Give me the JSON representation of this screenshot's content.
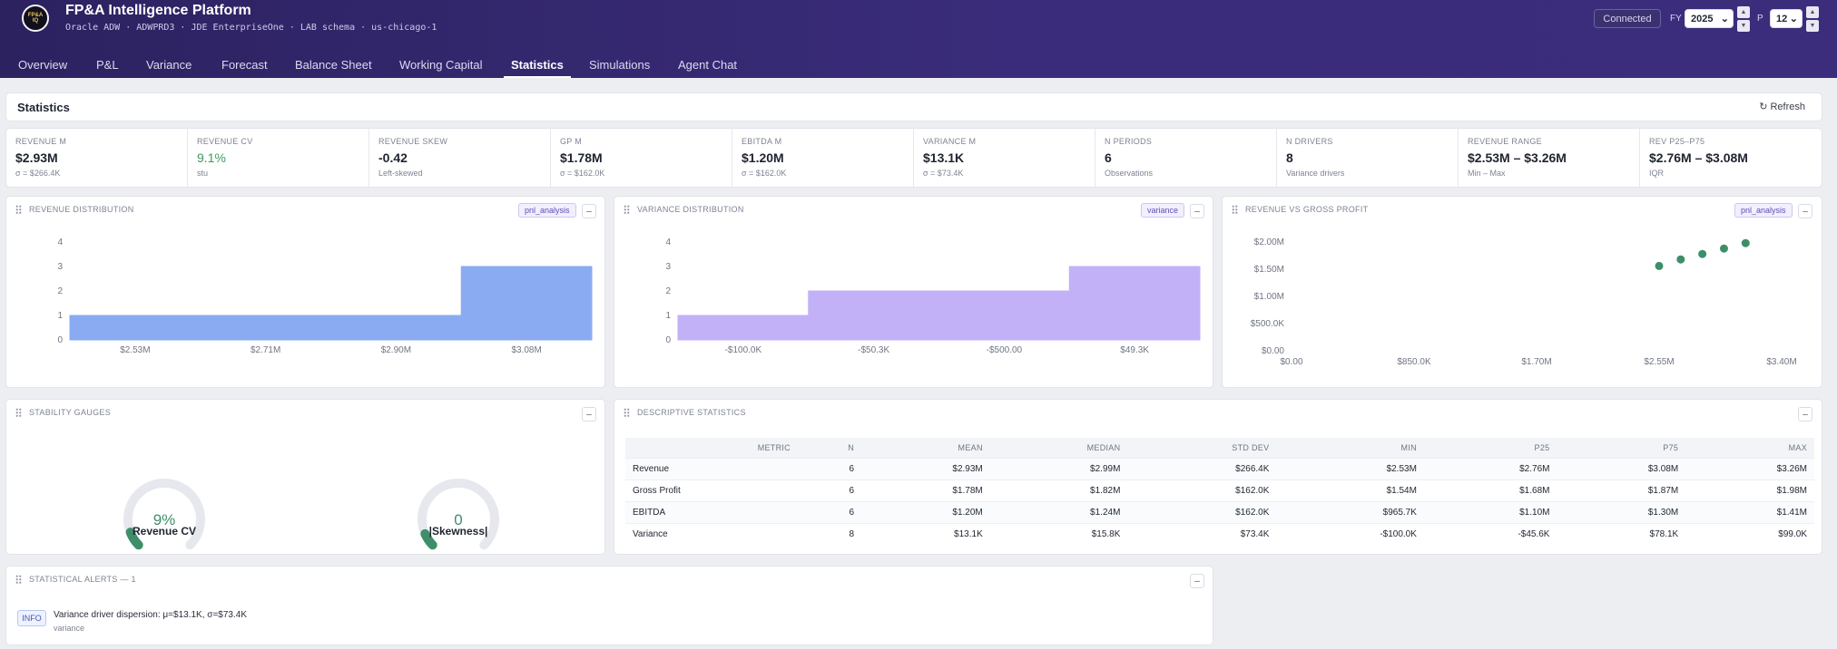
{
  "header": {
    "title": "FP&A Intelligence Platform",
    "subtitle": "Oracle ADW · ADWPRD3 · JDE EnterpriseOne · LAB schema · us-chicago-1",
    "status": "Connected",
    "fy_label": "FY",
    "fy_value": "2025",
    "p_label": "P",
    "p_value": "12"
  },
  "tabs": [
    "Overview",
    "P&L",
    "Variance",
    "Forecast",
    "Balance Sheet",
    "Working Capital",
    "Statistics",
    "Simulations",
    "Agent Chat"
  ],
  "active_tab": "Statistics",
  "page": {
    "title": "Statistics",
    "refresh_label": "↻ Refresh"
  },
  "kpis": [
    {
      "label": "REVENUE M",
      "value": "$2.93M",
      "sub": "σ = $266.4K"
    },
    {
      "label": "REVENUE CV",
      "value": "9.1%",
      "sub": "stu"
    },
    {
      "label": "REVENUE SKEW",
      "value": "-0.42",
      "sub": "Left-skewed"
    },
    {
      "label": "GP M",
      "value": "$1.78M",
      "sub": "σ = $162.0K"
    },
    {
      "label": "EBITDA M",
      "value": "$1.20M",
      "sub": "σ = $162.0K"
    },
    {
      "label": "VARIANCE M",
      "value": "$13.1K",
      "sub": "σ = $73.4K"
    },
    {
      "label": "N PERIODS",
      "value": "6",
      "sub": "Observations"
    },
    {
      "label": "N DRIVERS",
      "value": "8",
      "sub": "Variance drivers"
    },
    {
      "label": "REVENUE RANGE",
      "value": "$2.53M – $3.26M",
      "sub": "Min – Max"
    },
    {
      "label": "REV P25–P75",
      "value": "$2.76M – $3.08M",
      "sub": "IQR"
    }
  ],
  "panels": {
    "rev_dist": {
      "title": "REVENUE DISTRIBUTION",
      "tag": "pnl_analysis"
    },
    "var_dist": {
      "title": "VARIANCE DISTRIBUTION",
      "tag": "variance"
    },
    "rev_gp": {
      "title": "REVENUE VS GROSS PROFIT",
      "tag": "pnl_analysis"
    },
    "gauges": {
      "title": "STABILITY GAUGES"
    },
    "desc": {
      "title": "DESCRIPTIVE STATISTICS"
    },
    "alerts": {
      "title": "STATISTICAL ALERTS — 1"
    }
  },
  "chart_data": [
    {
      "type": "bar",
      "name": "revenue-distribution",
      "categories": [
        "$2.53M",
        "$2.71M",
        "$2.90M",
        "$3.08M"
      ],
      "values": [
        1,
        1,
        1,
        3
      ],
      "ylim": [
        0,
        4
      ],
      "yticks": [
        "0",
        "1",
        "2",
        "3",
        "4"
      ],
      "color": "#8aabf2"
    },
    {
      "type": "bar",
      "name": "variance-distribution",
      "categories": [
        "-$100.0K",
        "-$50.3K",
        "-$500.00",
        "$49.3K"
      ],
      "values": [
        1,
        2,
        2,
        3
      ],
      "ylim": [
        0,
        4
      ],
      "yticks": [
        "0",
        "1",
        "2",
        "3",
        "4"
      ],
      "color": "#c3b1f7"
    },
    {
      "type": "scatter",
      "name": "revenue-vs-gross-profit",
      "x": [
        2.55,
        2.7,
        2.85,
        3.0,
        3.15
      ],
      "y": [
        1.56,
        1.68,
        1.78,
        1.88,
        1.98
      ],
      "xlim": [
        0,
        3.4
      ],
      "ylim": [
        0,
        2.0
      ],
      "xticks": [
        "$0.00",
        "$850.0K",
        "$1.70M",
        "$2.55M",
        "$3.40M"
      ],
      "yticks": [
        "$0.00",
        "$500.0K",
        "$1.00M",
        "$1.50M",
        "$2.00M"
      ],
      "color": "#3e8e6a"
    }
  ],
  "gauges": [
    {
      "label": "Revenue CV",
      "value_text": "9%",
      "fraction": 0.09
    },
    {
      "label": "|Skewness|",
      "value_text": "0",
      "fraction": 0.08
    }
  ],
  "desc_stats": {
    "headers": [
      "METRIC",
      "N",
      "MEAN",
      "MEDIAN",
      "STD DEV",
      "MIN",
      "P25",
      "P75",
      "MAX"
    ],
    "rows": [
      [
        "Revenue",
        "6",
        "$2.93M",
        "$2.99M",
        "$266.4K",
        "$2.53M",
        "$2.76M",
        "$3.08M",
        "$3.26M"
      ],
      [
        "Gross Profit",
        "6",
        "$1.78M",
        "$1.82M",
        "$162.0K",
        "$1.54M",
        "$1.68M",
        "$1.87M",
        "$1.98M"
      ],
      [
        "EBITDA",
        "6",
        "$1.20M",
        "$1.24M",
        "$162.0K",
        "$965.7K",
        "$1.10M",
        "$1.30M",
        "$1.41M"
      ],
      [
        "Variance",
        "8",
        "$13.1K",
        "$15.8K",
        "$73.4K",
        "-$100.0K",
        "-$45.6K",
        "$78.1K",
        "$99.0K"
      ]
    ]
  },
  "alerts": [
    {
      "level": "INFO",
      "text": "Variance driver dispersion: μ=$13.1K, σ=$73.4K",
      "sub": "variance"
    }
  ],
  "icons": {
    "logo": "company-logo",
    "refresh": "refresh-icon",
    "grip": "drag-handle-icon",
    "collapse": "collapse-icon"
  }
}
